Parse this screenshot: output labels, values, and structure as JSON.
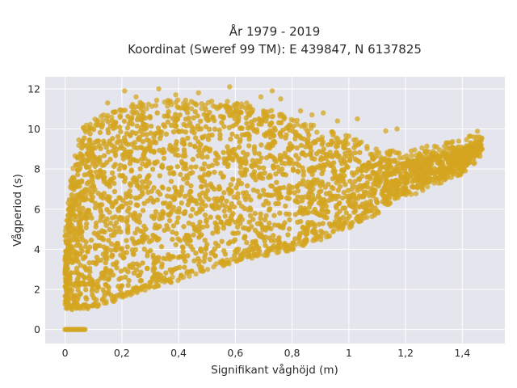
{
  "chart_data": {
    "type": "scatter",
    "title_lines": [
      "År 1979 - 2019",
      "Koordinat (Sweref 99 TM): E 439847, N 6137825"
    ],
    "xlabel": "Signifikant våghöjd (m)",
    "ylabel": "Vågperiod (s)",
    "xlim": [
      -0.07,
      1.55
    ],
    "ylim": [
      -0.7,
      12.6
    ],
    "x_ticks": [
      0,
      0.2,
      0.4,
      0.6,
      0.8,
      1,
      1.2,
      1.4
    ],
    "x_tick_labels": [
      "0",
      "0,2",
      "0,4",
      "0,6",
      "0,8",
      "1",
      "1,2",
      "1,4"
    ],
    "y_ticks": [
      0,
      2,
      4,
      6,
      8,
      10,
      12
    ],
    "y_tick_labels": [
      "0",
      "2",
      "4",
      "6",
      "8",
      "10",
      "12"
    ],
    "grid": true,
    "marker_color": "#D4A520",
    "background_color": "#E5E5EE",
    "envelope": {
      "description_points": "Approximate dense point cloud envelope (x in m, T in s)",
      "lower_x": [
        0.0,
        0.02,
        0.04,
        0.06,
        0.08,
        0.1,
        0.15,
        0.2,
        0.3,
        0.4,
        0.5,
        0.6,
        0.7,
        0.8,
        0.9,
        1.0,
        1.1,
        1.2,
        1.3,
        1.4,
        1.47
      ],
      "lower_y": [
        1.2,
        1.2,
        1.3,
        1.2,
        1.2,
        1.3,
        1.5,
        1.8,
        2.3,
        2.7,
        3.2,
        3.6,
        3.9,
        4.2,
        4.7,
        5.3,
        6.0,
        6.8,
        7.4,
        8.0,
        8.9
      ],
      "upper_x": [
        0.0,
        0.02,
        0.04,
        0.06,
        0.08,
        0.1,
        0.15,
        0.2,
        0.3,
        0.4,
        0.5,
        0.6,
        0.7,
        0.8,
        0.9,
        1.0,
        1.1,
        1.2,
        1.3,
        1.4,
        1.47
      ],
      "upper_y": [
        4.6,
        7.0,
        8.6,
        9.6,
        9.9,
        10.0,
        10.4,
        10.7,
        11.0,
        11.0,
        11.0,
        10.9,
        10.6,
        10.2,
        9.6,
        9.2,
        8.6,
        8.4,
        8.8,
        9.0,
        9.6
      ]
    },
    "outliers": [
      {
        "x": 0.21,
        "y": 11.9
      },
      {
        "x": 0.33,
        "y": 12.0
      },
      {
        "x": 0.39,
        "y": 11.7
      },
      {
        "x": 0.58,
        "y": 12.1
      },
      {
        "x": 0.73,
        "y": 11.9
      },
      {
        "x": 0.64,
        "y": 11.3
      },
      {
        "x": 0.83,
        "y": 10.9
      },
      {
        "x": 0.91,
        "y": 10.8
      },
      {
        "x": 0.87,
        "y": 10.7
      },
      {
        "x": 0.96,
        "y": 10.4
      },
      {
        "x": 1.03,
        "y": 10.5
      },
      {
        "x": 1.13,
        "y": 9.9
      },
      {
        "x": 1.17,
        "y": 10.0
      },
      {
        "x": 0.76,
        "y": 11.5
      },
      {
        "x": 0.69,
        "y": 11.6
      },
      {
        "x": 0.47,
        "y": 11.8
      },
      {
        "x": 0.25,
        "y": 11.6
      },
      {
        "x": 0.15,
        "y": 11.3
      },
      {
        "x": 1.22,
        "y": 8.9
      },
      {
        "x": 1.31,
        "y": 9.1
      },
      {
        "x": 1.44,
        "y": 9.6
      },
      {
        "x": 1.46,
        "y": 9.6
      },
      {
        "x": 0.05,
        "y": 4.5
      },
      {
        "x": 0.03,
        "y": 4.8
      }
    ],
    "zero_points": {
      "x_range": [
        0.0,
        0.07
      ],
      "y": 0
    }
  }
}
